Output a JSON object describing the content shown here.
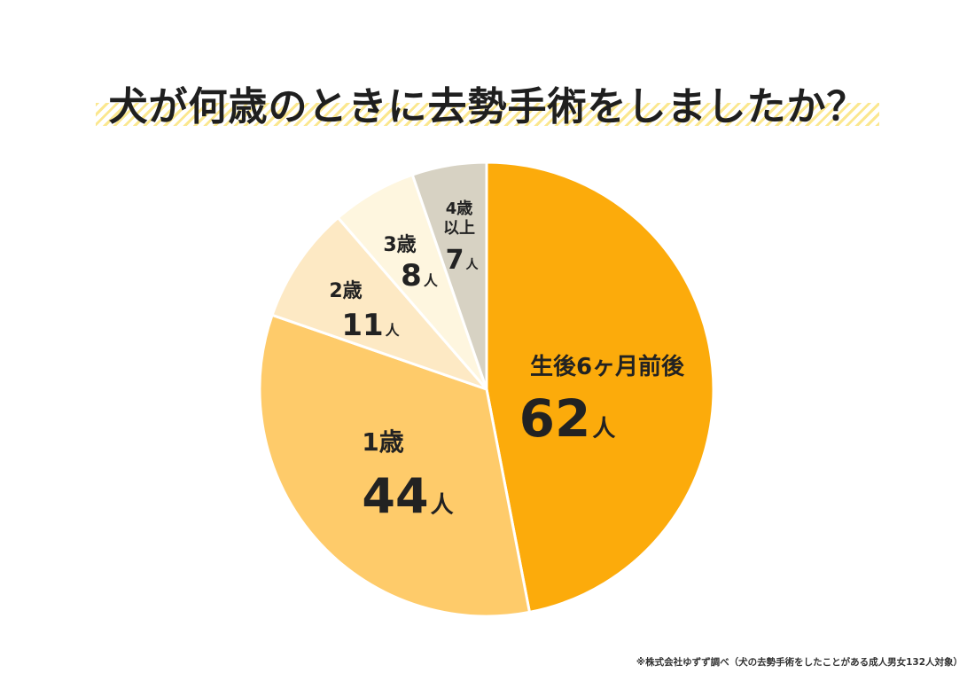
{
  "title": "犬が何歳のときに去勢手術をしましたか？",
  "footnote": "※株式会社ゆずず調べ（犬の去勢手術をしたことがある成人男女132人対象）",
  "colors": {
    "s0": "#fcab0b",
    "s1": "#fecb6a",
    "s2": "#fde9c4",
    "s3": "#fef6df",
    "s4": "#d7d2c3"
  },
  "chart_data": {
    "type": "pie",
    "title": "犬が何歳のときに去勢手術をしましたか？",
    "unit": "人",
    "slices": [
      {
        "label": "生後6ヶ月前後",
        "value": 62,
        "color": "#fcab0b"
      },
      {
        "label": "1歳",
        "value": 44,
        "color": "#fecb6a"
      },
      {
        "label": "2歳",
        "value": 11,
        "color": "#fde9c4"
      },
      {
        "label": "3歳",
        "value": 8,
        "color": "#fef6df"
      },
      {
        "label": "4歳\n以上",
        "value": 7,
        "color": "#d7d2c3"
      }
    ]
  }
}
